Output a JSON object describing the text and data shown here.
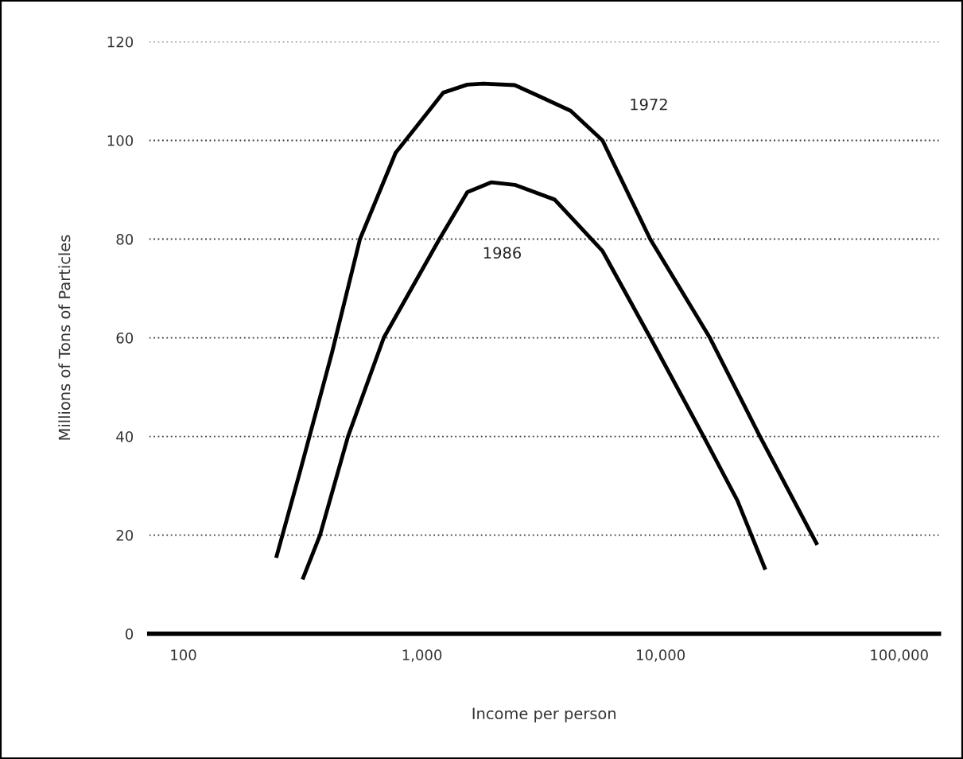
{
  "chart_data": {
    "type": "line",
    "xlabel": "Income per person",
    "ylabel": "Millions of Tons of Particles",
    "log": "x",
    "series": [
      {
        "name": "1972",
        "color": "#000000",
        "x": [
          245,
          309,
          420,
          550,
          776,
          1070,
          1230,
          1550,
          1806,
          2450,
          3090,
          4200,
          5710,
          9050,
          16100,
          26100,
          45400
        ],
        "values": [
          15.4,
          33,
          57,
          80,
          97.5,
          106,
          109.7,
          111.3,
          111.5,
          111.2,
          109,
          106,
          100,
          80,
          60,
          40,
          18
        ]
      },
      {
        "name": "1986",
        "color": "#000000",
        "x": [
          316,
          374,
          490,
          692,
          1184,
          1550,
          1950,
          2450,
          3600,
          5710,
          9060,
          15150,
          21000,
          27500
        ],
        "values": [
          11,
          20,
          40,
          60,
          80,
          89.5,
          91.5,
          91,
          88,
          77.6,
          60,
          40,
          27,
          13
        ]
      }
    ],
    "xlim": [
      72,
      146800
    ],
    "xticks": [
      {
        "value": 100,
        "label": "100"
      },
      {
        "value": 1000,
        "label": "1,000"
      },
      {
        "value": 10000,
        "label": "10,000"
      },
      {
        "value": 100000,
        "label": "100,000"
      }
    ],
    "ylim": [
      0,
      120
    ],
    "yticks": [
      0,
      20,
      40,
      60,
      80,
      100,
      120
    ],
    "grid": "y",
    "legend": false,
    "marker": "none",
    "line_style": "solid"
  }
}
